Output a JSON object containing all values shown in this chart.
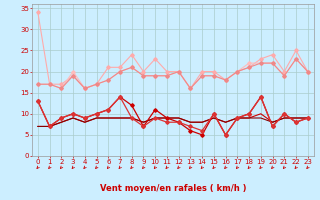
{
  "background_color": "#cceeff",
  "grid_color": "#aacccc",
  "xlabel": "Vent moyen/en rafales ( km/h )",
  "xlabel_color": "#cc0000",
  "xlabel_fontsize": 6,
  "tick_color": "#cc0000",
  "tick_fontsize": 5,
  "xlim": [
    -0.5,
    23.5
  ],
  "ylim": [
    0,
    36
  ],
  "yticks": [
    0,
    5,
    10,
    15,
    20,
    25,
    30,
    35
  ],
  "xticks": [
    0,
    1,
    2,
    3,
    4,
    5,
    6,
    7,
    8,
    9,
    10,
    11,
    12,
    13,
    14,
    15,
    16,
    17,
    18,
    19,
    20,
    21,
    22,
    23
  ],
  "hours": [
    0,
    1,
    2,
    3,
    4,
    5,
    6,
    7,
    8,
    9,
    10,
    11,
    12,
    13,
    14,
    15,
    16,
    17,
    18,
    19,
    20,
    21,
    22,
    23
  ],
  "series": [
    {
      "color": "#ffaaaa",
      "linewidth": 0.8,
      "marker": "D",
      "markersize": 1.8,
      "values": [
        34,
        17,
        17,
        19,
        16,
        17,
        21,
        21,
        24,
        20,
        23,
        20,
        20,
        16,
        20,
        20,
        18,
        20,
        21,
        23,
        24,
        20,
        25,
        20
      ]
    },
    {
      "color": "#ffbbbb",
      "linewidth": 0.8,
      "marker": "D",
      "markersize": 1.8,
      "values": [
        17,
        17,
        16,
        20,
        16,
        17,
        18,
        20,
        21,
        19,
        19,
        19,
        20,
        16,
        19,
        19,
        18,
        20,
        22,
        22,
        22,
        19,
        23,
        20
      ]
    },
    {
      "color": "#ee8888",
      "linewidth": 0.8,
      "marker": "D",
      "markersize": 1.8,
      "values": [
        17,
        17,
        16,
        19,
        16,
        17,
        18,
        20,
        21,
        19,
        19,
        19,
        20,
        16,
        19,
        19,
        18,
        20,
        21,
        22,
        22,
        19,
        23,
        20
      ]
    },
    {
      "color": "#cc0000",
      "linewidth": 0.9,
      "marker": "D",
      "markersize": 1.8,
      "values": [
        13,
        7,
        9,
        10,
        9,
        10,
        11,
        14,
        12,
        7,
        11,
        9,
        8,
        6,
        5,
        10,
        5,
        9,
        10,
        14,
        7,
        10,
        8,
        9
      ]
    },
    {
      "color": "#dd3333",
      "linewidth": 0.9,
      "marker": "D",
      "markersize": 1.8,
      "values": [
        13,
        7,
        9,
        10,
        9,
        10,
        11,
        14,
        9,
        7,
        9,
        8,
        8,
        7,
        6,
        10,
        5,
        9,
        10,
        14,
        7,
        10,
        8,
        9
      ]
    },
    {
      "color": "#cc0000",
      "linewidth": 0.8,
      "marker": null,
      "markersize": 0,
      "values": [
        7,
        7,
        8,
        9,
        8,
        9,
        9,
        9,
        9,
        8,
        9,
        9,
        9,
        8,
        8,
        9,
        8,
        9,
        9,
        10,
        8,
        9,
        9,
        9
      ]
    },
    {
      "color": "#880000",
      "linewidth": 0.8,
      "marker": null,
      "markersize": 0,
      "values": [
        7,
        7,
        8,
        9,
        8,
        9,
        9,
        9,
        9,
        8,
        9,
        9,
        9,
        8,
        8,
        9,
        8,
        9,
        9,
        9,
        8,
        9,
        9,
        9
      ]
    }
  ],
  "arrow_color": "#cc0000"
}
